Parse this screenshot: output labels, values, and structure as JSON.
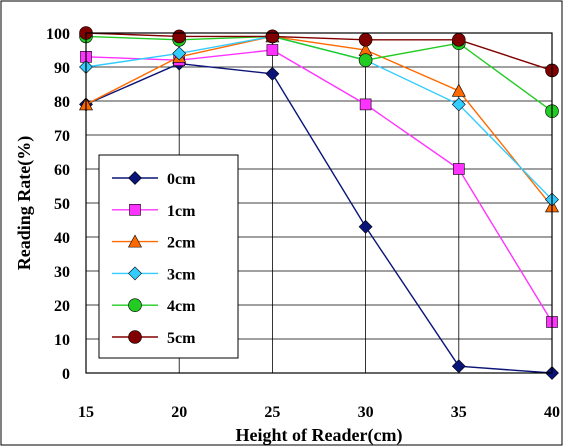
{
  "chart_data": {
    "type": "line",
    "title": "",
    "xlabel": "Height of Reader(cm)",
    "ylabel": "Reading Rate(%)",
    "x": [
      15,
      20,
      25,
      30,
      35,
      40
    ],
    "x_ticks": [
      "15",
      "20",
      "25",
      "30",
      "35",
      "40"
    ],
    "y_ticks": [
      "0",
      "10",
      "20",
      "30",
      "40",
      "50",
      "60",
      "70",
      "80",
      "90",
      "100"
    ],
    "xlim": [
      15,
      40
    ],
    "ylim": [
      0,
      100
    ],
    "grid": true,
    "legend_position": "bottom-left",
    "series": [
      {
        "name": "0cm",
        "color": "#0a1478",
        "marker": "diamond",
        "values": [
          79,
          91,
          88,
          43,
          2,
          0
        ]
      },
      {
        "name": "1cm",
        "color": "#ff33ff",
        "marker": "square",
        "values": [
          93,
          92,
          95,
          79,
          60,
          15
        ]
      },
      {
        "name": "2cm",
        "color": "#ff6a00",
        "marker": "triangle",
        "values": [
          79,
          93,
          99,
          95,
          83,
          49
        ]
      },
      {
        "name": "3cm",
        "color": "#33ccff",
        "marker": "diamond",
        "values": [
          90,
          94,
          99,
          92,
          79,
          51
        ]
      },
      {
        "name": "4cm",
        "color": "#22cc22",
        "marker": "circle",
        "values": [
          99,
          98,
          99,
          92,
          97,
          77
        ]
      },
      {
        "name": "5cm",
        "color": "#800000",
        "marker": "circle",
        "values": [
          100,
          99,
          99,
          98,
          98,
          89
        ]
      }
    ]
  }
}
